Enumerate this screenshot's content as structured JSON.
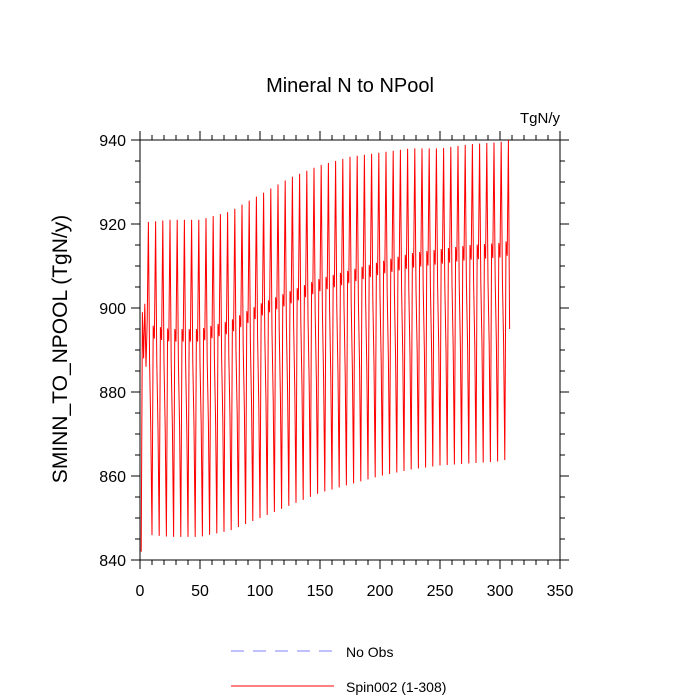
{
  "chart_data": {
    "type": "line",
    "title": "Mineral N to NPool",
    "units_label": "TgN/y",
    "xlabel": "",
    "ylabel": "SMINN_TO_NPOOL  (TgN/y)",
    "xlim": [
      0,
      350
    ],
    "ylim": [
      840,
      940
    ],
    "x_ticks": [
      0,
      50,
      100,
      150,
      200,
      250,
      300,
      350
    ],
    "y_ticks": [
      840,
      860,
      880,
      900,
      920,
      940
    ],
    "x_minor_step": 10,
    "y_minor_step": 5,
    "grid": false,
    "legend_position": "bottom",
    "legend": [
      {
        "label": "No Obs",
        "color": "#8080ff",
        "style": "dashed"
      },
      {
        "label": "Spin002 (1-308)",
        "color": "#ff0000",
        "style": "solid"
      }
    ],
    "series": [
      {
        "name": "Spin002 (1-308)",
        "color": "#ff0000",
        "x_start": 1,
        "x_end": 308,
        "cycle_length": 6,
        "first_values": [
          842,
          899,
          888,
          901,
          886,
          897
        ],
        "anchor_x": [
          7,
          25,
          50,
          75,
          100,
          125,
          150,
          175,
          200,
          225,
          250,
          275,
          300,
          307
        ],
        "cycle_max": [
          920.5,
          921,
          921,
          923,
          927,
          931,
          934,
          936,
          937,
          938,
          938,
          939,
          939.5,
          940
        ],
        "cycle_min": [
          846,
          845.5,
          845.5,
          847,
          850,
          853,
          856,
          858,
          860,
          861.5,
          862.5,
          863,
          863.5,
          864
        ],
        "cycle_mid_high": [
          896,
          895,
          895,
          897,
          901,
          904,
          907,
          909,
          911,
          913,
          914,
          915,
          915.5,
          916
        ],
        "cycle_mid_low": [
          871,
          871.5,
          872,
          874,
          877,
          880,
          883,
          885,
          887,
          889,
          890,
          891,
          891.5,
          892
        ],
        "cycle_mean_a": [
          887,
          887,
          887,
          889,
          893,
          896,
          899,
          901,
          903,
          904.5,
          905.5,
          906,
          906.5,
          907
        ],
        "cycle_mean_b": [
          893,
          892,
          892,
          894,
          898,
          901,
          904,
          906,
          908,
          909.5,
          910.5,
          911.5,
          912,
          912.5
        ],
        "last_value": 895
      }
    ]
  }
}
